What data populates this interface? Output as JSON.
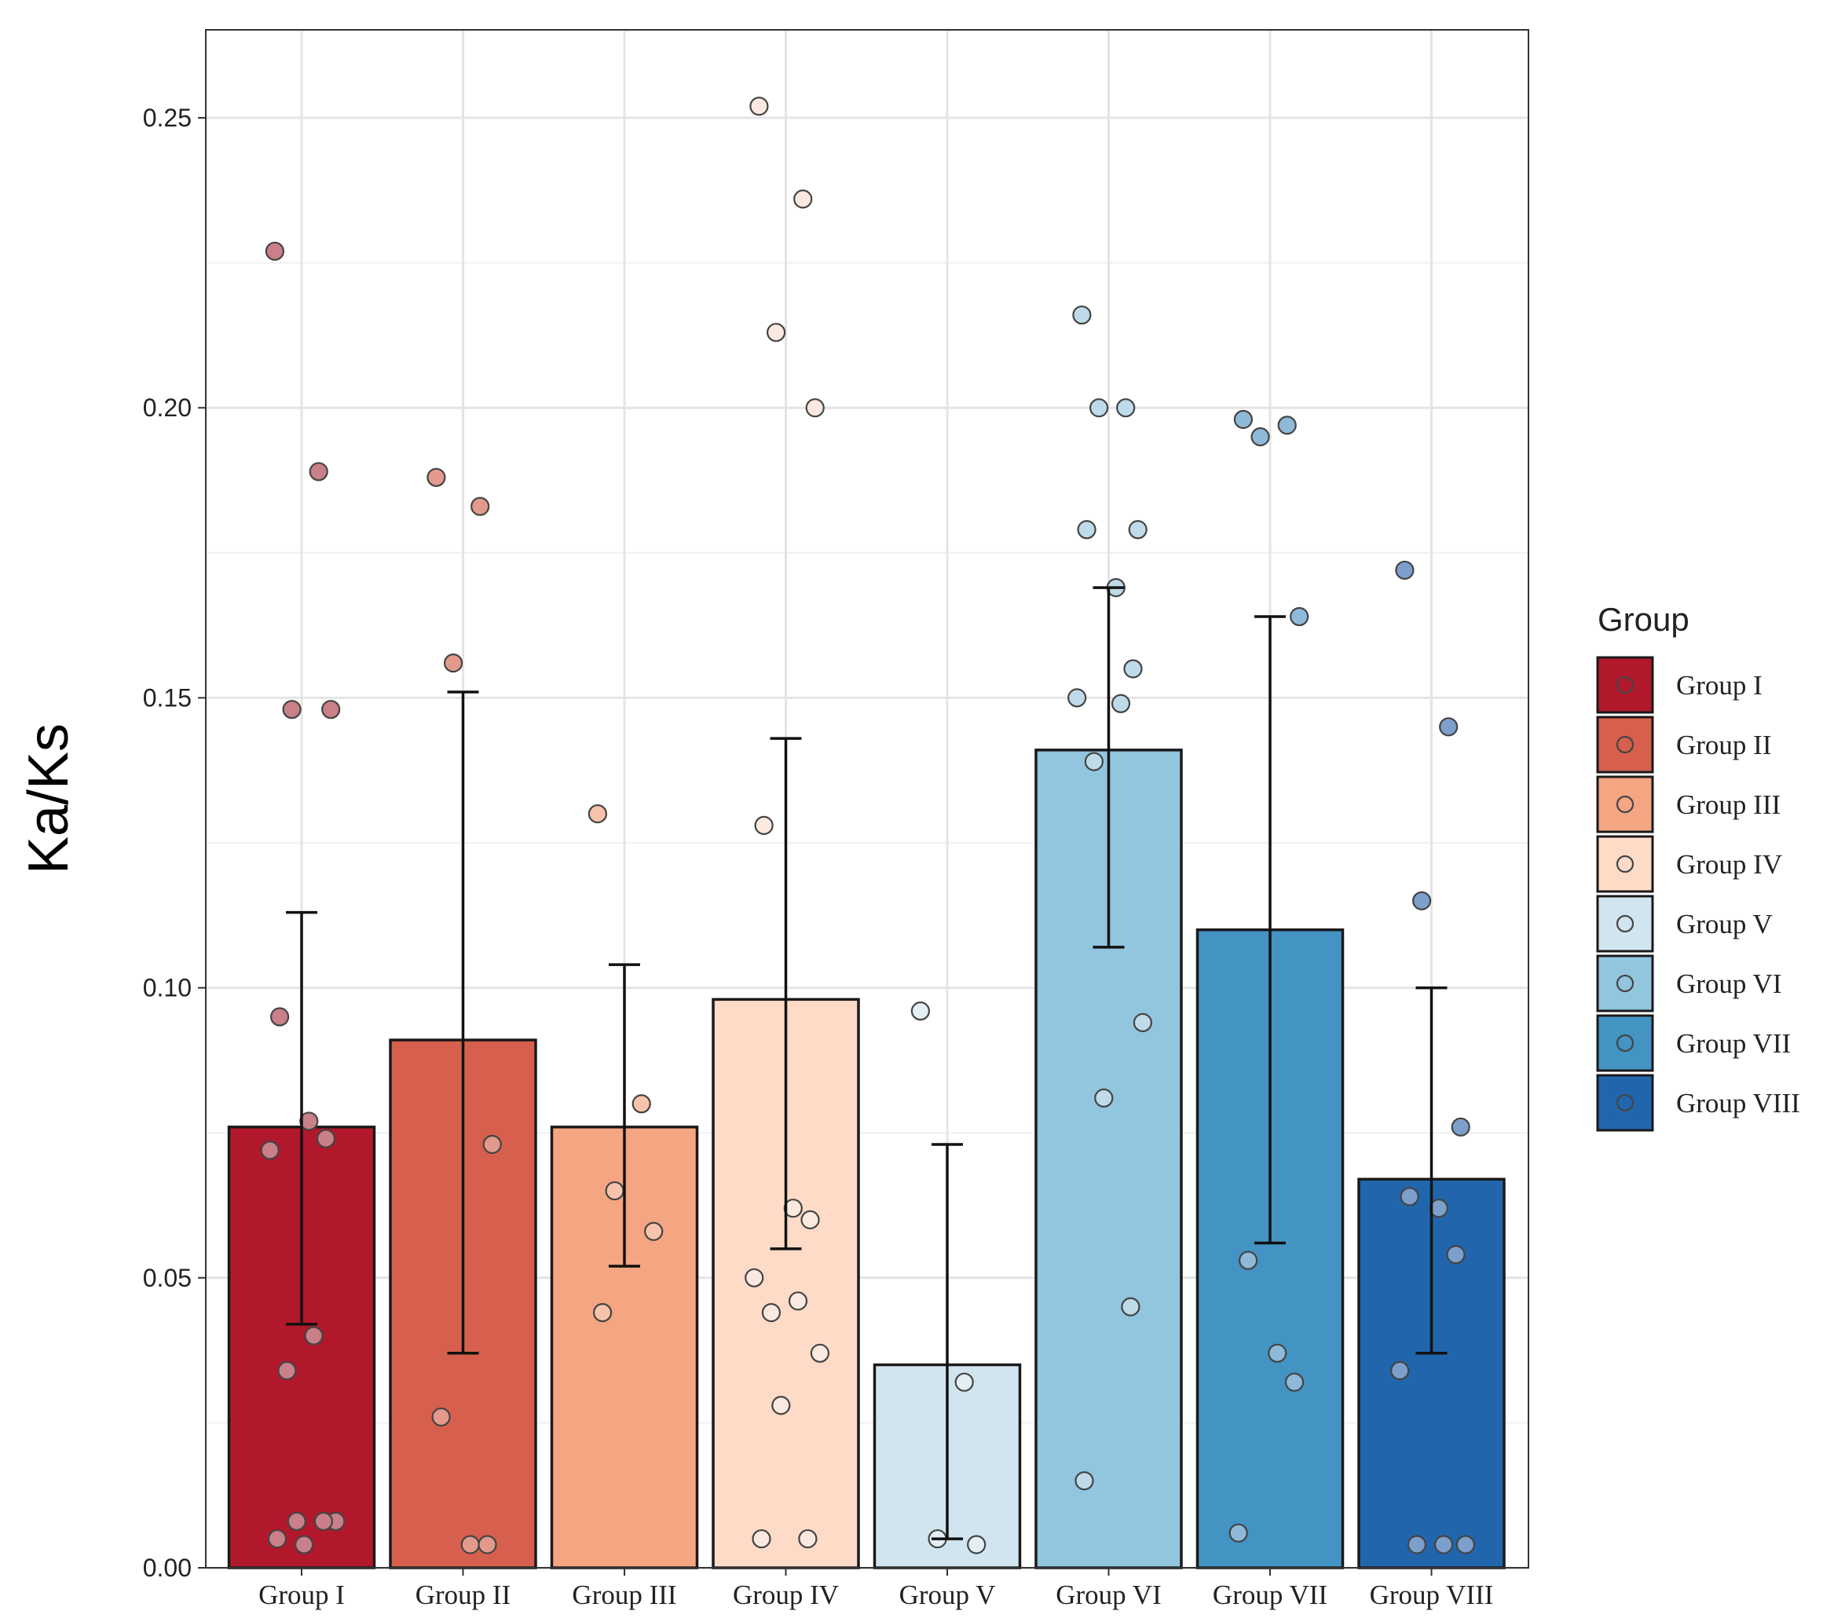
{
  "chart_data": {
    "type": "bar",
    "title": "",
    "xlabel": "",
    "ylabel": "Ka/Ks",
    "ylim": [
      0,
      0.265
    ],
    "yticks": [
      "0.00",
      "0.05",
      "0.10",
      "0.15",
      "0.20",
      "0.25"
    ],
    "ytick_values": [
      0,
      0.05,
      0.1,
      0.15,
      0.2,
      0.25
    ],
    "grid": true,
    "legend": {
      "title": "Group",
      "placement": "right"
    },
    "categories": [
      "Group I",
      "Group II",
      "Group III",
      "Group IV",
      "Group V",
      "Group VI",
      "Group VII",
      "Group VIII"
    ],
    "colors": [
      "#b2182b",
      "#d6604d",
      "#f4a582",
      "#fddbc7",
      "#d1e5f0",
      "#92c5de",
      "#4393c3",
      "#2166ac"
    ],
    "point_colors": [
      "#c98088",
      "#e39a8c",
      "#f7c3aa",
      "#fbe9df",
      "#e4eef5",
      "#bfdbe9",
      "#8fb9d9",
      "#7c9fcc"
    ],
    "values": [
      0.076,
      0.091,
      0.076,
      0.098,
      0.035,
      0.141,
      0.11,
      0.067
    ],
    "error_low": [
      0.042,
      0.037,
      0.052,
      0.055,
      0.005,
      0.107,
      0.056,
      0.037
    ],
    "error_high": [
      0.113,
      0.151,
      0.104,
      0.143,
      0.073,
      0.169,
      0.164,
      0.1
    ],
    "points": [
      [
        0.227,
        0.189,
        0.148,
        0.148,
        0.095,
        0.077,
        0.074,
        0.072,
        0.04,
        0.034,
        0.008,
        0.008,
        0.008,
        0.005,
        0.004
      ],
      [
        0.188,
        0.183,
        0.156,
        0.073,
        0.026,
        0.004,
        0.004
      ],
      [
        0.13,
        0.08,
        0.065,
        0.058,
        0.044
      ],
      [
        0.252,
        0.236,
        0.213,
        0.2,
        0.128,
        0.062,
        0.06,
        0.05,
        0.046,
        0.044,
        0.037,
        0.028,
        0.005,
        0.005
      ],
      [
        0.096,
        0.032,
        0.005,
        0.004
      ],
      [
        0.216,
        0.2,
        0.2,
        0.179,
        0.179,
        0.169,
        0.155,
        0.15,
        0.149,
        0.139,
        0.094,
        0.081,
        0.045,
        0.015
      ],
      [
        0.198,
        0.197,
        0.195,
        0.164,
        0.053,
        0.037,
        0.032,
        0.006
      ],
      [
        0.172,
        0.145,
        0.115,
        0.076,
        0.064,
        0.062,
        0.054,
        0.034,
        0.004,
        0.004,
        0.004
      ]
    ]
  }
}
